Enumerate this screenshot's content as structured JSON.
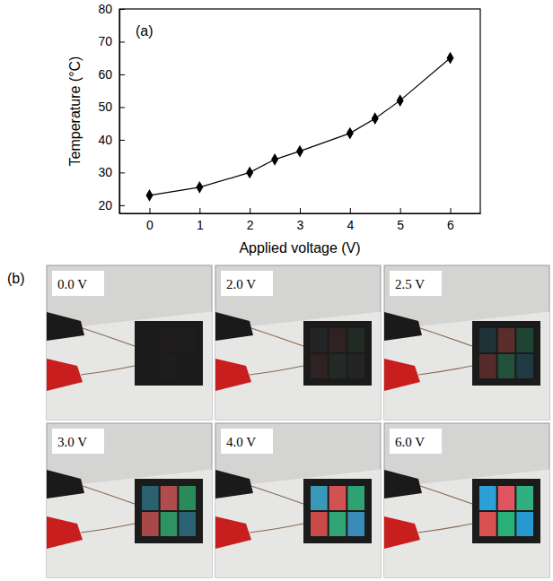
{
  "chart_data": {
    "type": "line",
    "annotations": [
      "(a)"
    ],
    "x_label": "Applied voltage (V)",
    "y_label": "Temperature (°C)",
    "x": [
      0,
      1,
      2,
      2.5,
      3,
      4,
      4.5,
      5,
      6
    ],
    "values": [
      23,
      25.5,
      30,
      34,
      36.5,
      42,
      46.5,
      52,
      65
    ],
    "color": "#000000",
    "marker": "diamond",
    "line_style": "solid",
    "grid": false,
    "xlim": [
      -0.6,
      6.6
    ],
    "ylim": [
      17.5,
      80
    ],
    "xticks": [
      0,
      1,
      2,
      3,
      4,
      5,
      6
    ],
    "yticks": [
      20,
      30,
      40,
      50,
      60,
      70,
      80
    ]
  },
  "photos": {
    "label": "(b)",
    "items": [
      {
        "label": "0.0 V",
        "colors": [
          "#1c1c1c",
          "#1e1c1c",
          "#1c1d1c",
          "#1d1c1c",
          "#1c1d1c",
          "#1c1c1d"
        ]
      },
      {
        "label": "2.0 V",
        "colors": [
          "#222426",
          "#2e2222",
          "#222a24",
          "#2e2222",
          "#232a25",
          "#222426"
        ]
      },
      {
        "label": "2.5 V",
        "colors": [
          "#1e3338",
          "#5a2c2c",
          "#1f4434",
          "#552a2a",
          "#22503a",
          "#1f3a42"
        ]
      },
      {
        "label": "3.0 V",
        "colors": [
          "#2b6070",
          "#b04c4c",
          "#2a8a5c",
          "#a84848",
          "#2f9262",
          "#2a6374"
        ]
      },
      {
        "label": "4.0 V",
        "colors": [
          "#3a98b8",
          "#d25252",
          "#2fa272",
          "#ca4a4a",
          "#30a474",
          "#3a8cb8"
        ]
      },
      {
        "label": "6.0 V",
        "colors": [
          "#2ea0d8",
          "#e05560",
          "#30b080",
          "#d85050",
          "#28b078",
          "#2898d0"
        ]
      }
    ]
  }
}
